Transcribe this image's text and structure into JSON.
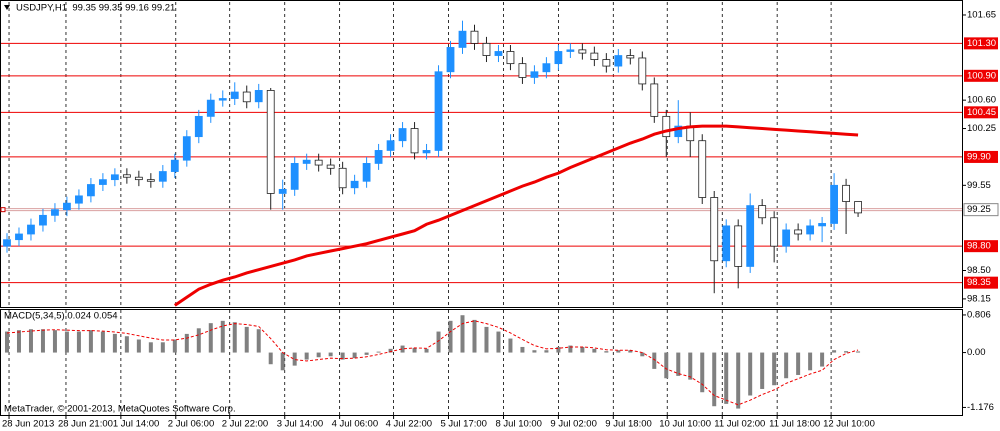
{
  "chart_data": {
    "type": "candlestick",
    "title": "USDJPY,H1  99.35 99.35 99.16 99.21",
    "open": [
      98.8,
      98.88,
      98.95,
      99.06,
      99.18,
      99.25,
      99.33,
      99.42,
      99.56,
      99.62,
      99.68,
      99.65,
      99.62,
      99.6,
      99.72,
      99.86,
      100.15,
      100.4,
      100.6,
      100.62,
      100.7,
      100.58,
      100.72,
      99.45,
      99.5,
      99.82,
      99.86,
      99.8,
      99.76,
      99.52,
      99.6,
      99.82,
      99.98,
      100.1,
      100.25,
      99.95,
      99.98,
      100.95,
      101.25,
      101.45,
      101.3,
      101.15,
      101.2,
      101.05,
      100.88,
      100.95,
      101.05,
      101.2,
      101.22,
      101.18,
      101.1,
      101.02,
      101.15,
      101.12,
      100.8,
      100.4,
      100.15,
      100.28,
      100.1,
      99.4,
      98.62,
      99.05,
      98.55,
      99.3,
      99.15,
      98.8,
      99.0,
      98.95,
      99.05,
      99.08,
      99.55,
      99.35
    ],
    "high": [
      98.96,
      99.03,
      99.14,
      99.26,
      99.33,
      99.41,
      99.5,
      99.64,
      99.7,
      99.76,
      99.76,
      99.73,
      99.7,
      99.8,
      99.94,
      100.23,
      100.48,
      100.68,
      100.72,
      100.82,
      100.78,
      100.8,
      100.75,
      99.62,
      99.9,
      99.94,
      99.94,
      99.88,
      99.84,
      99.68,
      99.9,
      100.06,
      100.18,
      100.33,
      100.33,
      100.06,
      101.03,
      101.33,
      101.58,
      101.53,
      101.38,
      101.28,
      101.28,
      101.13,
      101.03,
      101.13,
      101.28,
      101.3,
      101.3,
      101.26,
      101.18,
      101.23,
      101.23,
      101.2,
      100.88,
      100.48,
      100.6,
      100.45,
      100.18,
      99.48,
      99.13,
      99.13,
      99.45,
      99.38,
      99.23,
      99.08,
      99.08,
      99.13,
      99.16,
      99.7,
      99.63,
      99.35
    ],
    "low": [
      98.72,
      98.8,
      98.87,
      98.98,
      99.1,
      99.17,
      99.25,
      99.34,
      99.48,
      99.54,
      99.57,
      99.54,
      99.52,
      99.52,
      99.64,
      99.78,
      100.07,
      100.32,
      100.52,
      100.54,
      100.5,
      100.5,
      99.25,
      99.25,
      99.42,
      99.74,
      99.72,
      99.68,
      99.44,
      99.44,
      99.52,
      99.74,
      99.9,
      100.02,
      99.87,
      99.87,
      99.9,
      100.87,
      101.17,
      101.22,
      101.07,
      101.07,
      100.97,
      100.8,
      100.8,
      100.87,
      100.97,
      101.12,
      101.1,
      101.02,
      100.94,
      100.94,
      101.04,
      100.72,
      100.32,
      99.9,
      100.07,
      99.9,
      99.32,
      98.22,
      98.54,
      98.28,
      98.47,
      99.07,
      98.6,
      98.72,
      98.87,
      98.87,
      98.85,
      99.0,
      98.95,
      99.16
    ],
    "close": [
      98.88,
      98.95,
      99.06,
      99.18,
      99.25,
      99.33,
      99.42,
      99.56,
      99.62,
      99.68,
      99.65,
      99.62,
      99.6,
      99.72,
      99.86,
      100.15,
      100.4,
      100.6,
      100.62,
      100.7,
      100.58,
      100.72,
      99.45,
      99.5,
      99.82,
      99.86,
      99.8,
      99.76,
      99.52,
      99.6,
      99.82,
      99.98,
      100.1,
      100.25,
      99.95,
      99.98,
      100.95,
      101.25,
      101.45,
      101.3,
      101.15,
      101.2,
      101.05,
      100.88,
      100.95,
      101.05,
      101.2,
      101.22,
      101.18,
      101.1,
      101.02,
      101.15,
      101.12,
      100.8,
      100.4,
      100.15,
      100.28,
      100.1,
      99.4,
      98.62,
      99.05,
      98.55,
      99.3,
      99.15,
      98.8,
      99.0,
      98.95,
      99.05,
      99.08,
      99.55,
      99.35,
      99.21
    ],
    "up_color": "#1e90ff",
    "down_color": "#ffffff",
    "ma": {
      "color": "#ee0000",
      "values": [
        null,
        null,
        null,
        null,
        null,
        null,
        null,
        null,
        null,
        null,
        null,
        null,
        null,
        null,
        98.07,
        98.17,
        98.27,
        98.33,
        98.38,
        98.42,
        98.47,
        98.51,
        98.55,
        98.59,
        98.63,
        98.68,
        98.71,
        98.74,
        98.77,
        98.8,
        98.83,
        98.87,
        98.91,
        98.95,
        98.99,
        99.07,
        99.12,
        99.18,
        99.24,
        99.3,
        99.36,
        99.42,
        99.48,
        99.54,
        99.59,
        99.65,
        99.7,
        99.77,
        99.83,
        99.89,
        99.95,
        100.01,
        100.07,
        100.12,
        100.18,
        100.22,
        100.25,
        100.27,
        100.28,
        100.28,
        100.28,
        100.27,
        100.26,
        100.25,
        100.24,
        100.23,
        100.22,
        100.21,
        100.2,
        100.19,
        100.18,
        100.17
      ]
    },
    "ylim": [
      98.05,
      101.81
    ],
    "yticks": [
      101.65,
      {
        "value": 100.6,
        "label": "100.60"
      },
      100.25,
      99.55,
      {
        "value": 98.5,
        "label": "98.50"
      },
      98.15
    ],
    "levels": [
      {
        "value": 101.3,
        "label": "101.30"
      },
      {
        "value": 100.9,
        "label": "100.90"
      },
      100.45,
      {
        "value": 99.9,
        "label": "99.90"
      },
      {
        "value": 98.8,
        "label": "98.80"
      },
      98.35
    ],
    "level_color": "#ee0000",
    "current_price": 99.25,
    "xlim": [
      -0.5,
      79.67
    ],
    "xticks": [
      {
        "value": 0.17,
        "label": "28 Jun 2013"
      },
      {
        "value": 4.92,
        "label": "28 Jun 21:00"
      },
      {
        "value": 9.5,
        "label": "1 Jul 14:00"
      },
      {
        "value": 14.08,
        "label": "2 Jul 06:00"
      },
      {
        "value": 18.58,
        "label": "2 Jul 22:00"
      },
      {
        "value": 23.17,
        "label": "3 Jul 14:00"
      },
      {
        "value": 27.75,
        "label": "4 Jul 06:00"
      },
      {
        "value": 32.25,
        "label": "4 Jul 22:00"
      },
      {
        "value": 36.83,
        "label": "5 Jul 17:00"
      },
      {
        "value": 41.42,
        "label": "8 Jul 10:00"
      },
      {
        "value": 46.0,
        "label": "9 Jul 02:00"
      },
      {
        "value": 50.58,
        "label": "9 Jul 18:00"
      },
      {
        "value": 55.08,
        "label": "10 Jul 10:00"
      },
      {
        "value": 59.67,
        "label": "11 Jul 02:00"
      },
      {
        "value": 64.25,
        "label": "11 Jul 18:00"
      },
      {
        "value": 68.75,
        "label": "12 Jul 10:00"
      }
    ],
    "grid": true,
    "macd": {
      "title": "MACD(5,34,5) 0.024 0.054",
      "color": "#808080",
      "signal_color": "#ee0000",
      "hist": [
        0.45,
        0.48,
        0.5,
        0.5,
        0.48,
        0.45,
        0.45,
        0.48,
        0.45,
        0.4,
        0.35,
        0.28,
        0.22,
        0.22,
        0.28,
        0.4,
        0.52,
        0.63,
        0.68,
        0.65,
        0.55,
        0.5,
        -0.25,
        -0.38,
        -0.28,
        -0.15,
        -0.1,
        -0.08,
        -0.15,
        -0.12,
        -0.05,
        0.02,
        0.08,
        0.15,
        0.1,
        0.08,
        0.45,
        0.68,
        0.8,
        0.7,
        0.55,
        0.45,
        0.3,
        0.12,
        0.05,
        0.05,
        0.12,
        0.15,
        0.12,
        0.08,
        0.03,
        0.05,
        0.05,
        -0.08,
        -0.35,
        -0.55,
        -0.5,
        -0.58,
        -0.85,
        -1.15,
        -1.1,
        -1.2,
        -0.92,
        -0.78,
        -0.7,
        -0.55,
        -0.48,
        -0.38,
        -0.3,
        0.05,
        0.03,
        0.024
      ],
      "signal": [
        0.42,
        0.44,
        0.46,
        0.48,
        0.49,
        0.48,
        0.47,
        0.47,
        0.46,
        0.44,
        0.41,
        0.36,
        0.31,
        0.27,
        0.27,
        0.31,
        0.38,
        0.48,
        0.57,
        0.62,
        0.6,
        0.56,
        0.3,
        0.0,
        -0.15,
        -0.18,
        -0.15,
        -0.12,
        -0.13,
        -0.12,
        -0.09,
        -0.04,
        0.02,
        0.08,
        0.1,
        0.09,
        0.25,
        0.45,
        0.62,
        0.68,
        0.62,
        0.54,
        0.42,
        0.28,
        0.15,
        0.08,
        0.09,
        0.12,
        0.12,
        0.1,
        0.06,
        0.05,
        0.05,
        0.0,
        -0.15,
        -0.35,
        -0.45,
        -0.52,
        -0.68,
        -0.92,
        -1.02,
        -1.12,
        -1.02,
        -0.9,
        -0.8,
        -0.66,
        -0.56,
        -0.46,
        -0.38,
        -0.15,
        -0.02,
        0.054
      ],
      "ylim": [
        -1.338,
        0.912
      ],
      "yticks": [
        0.806,
        {
          "value": 0,
          "label": "0.00"
        },
        -1.176
      ]
    },
    "copyright": "MetaTrader, © 2001-2013, MetaQuotes Software Corp."
  }
}
